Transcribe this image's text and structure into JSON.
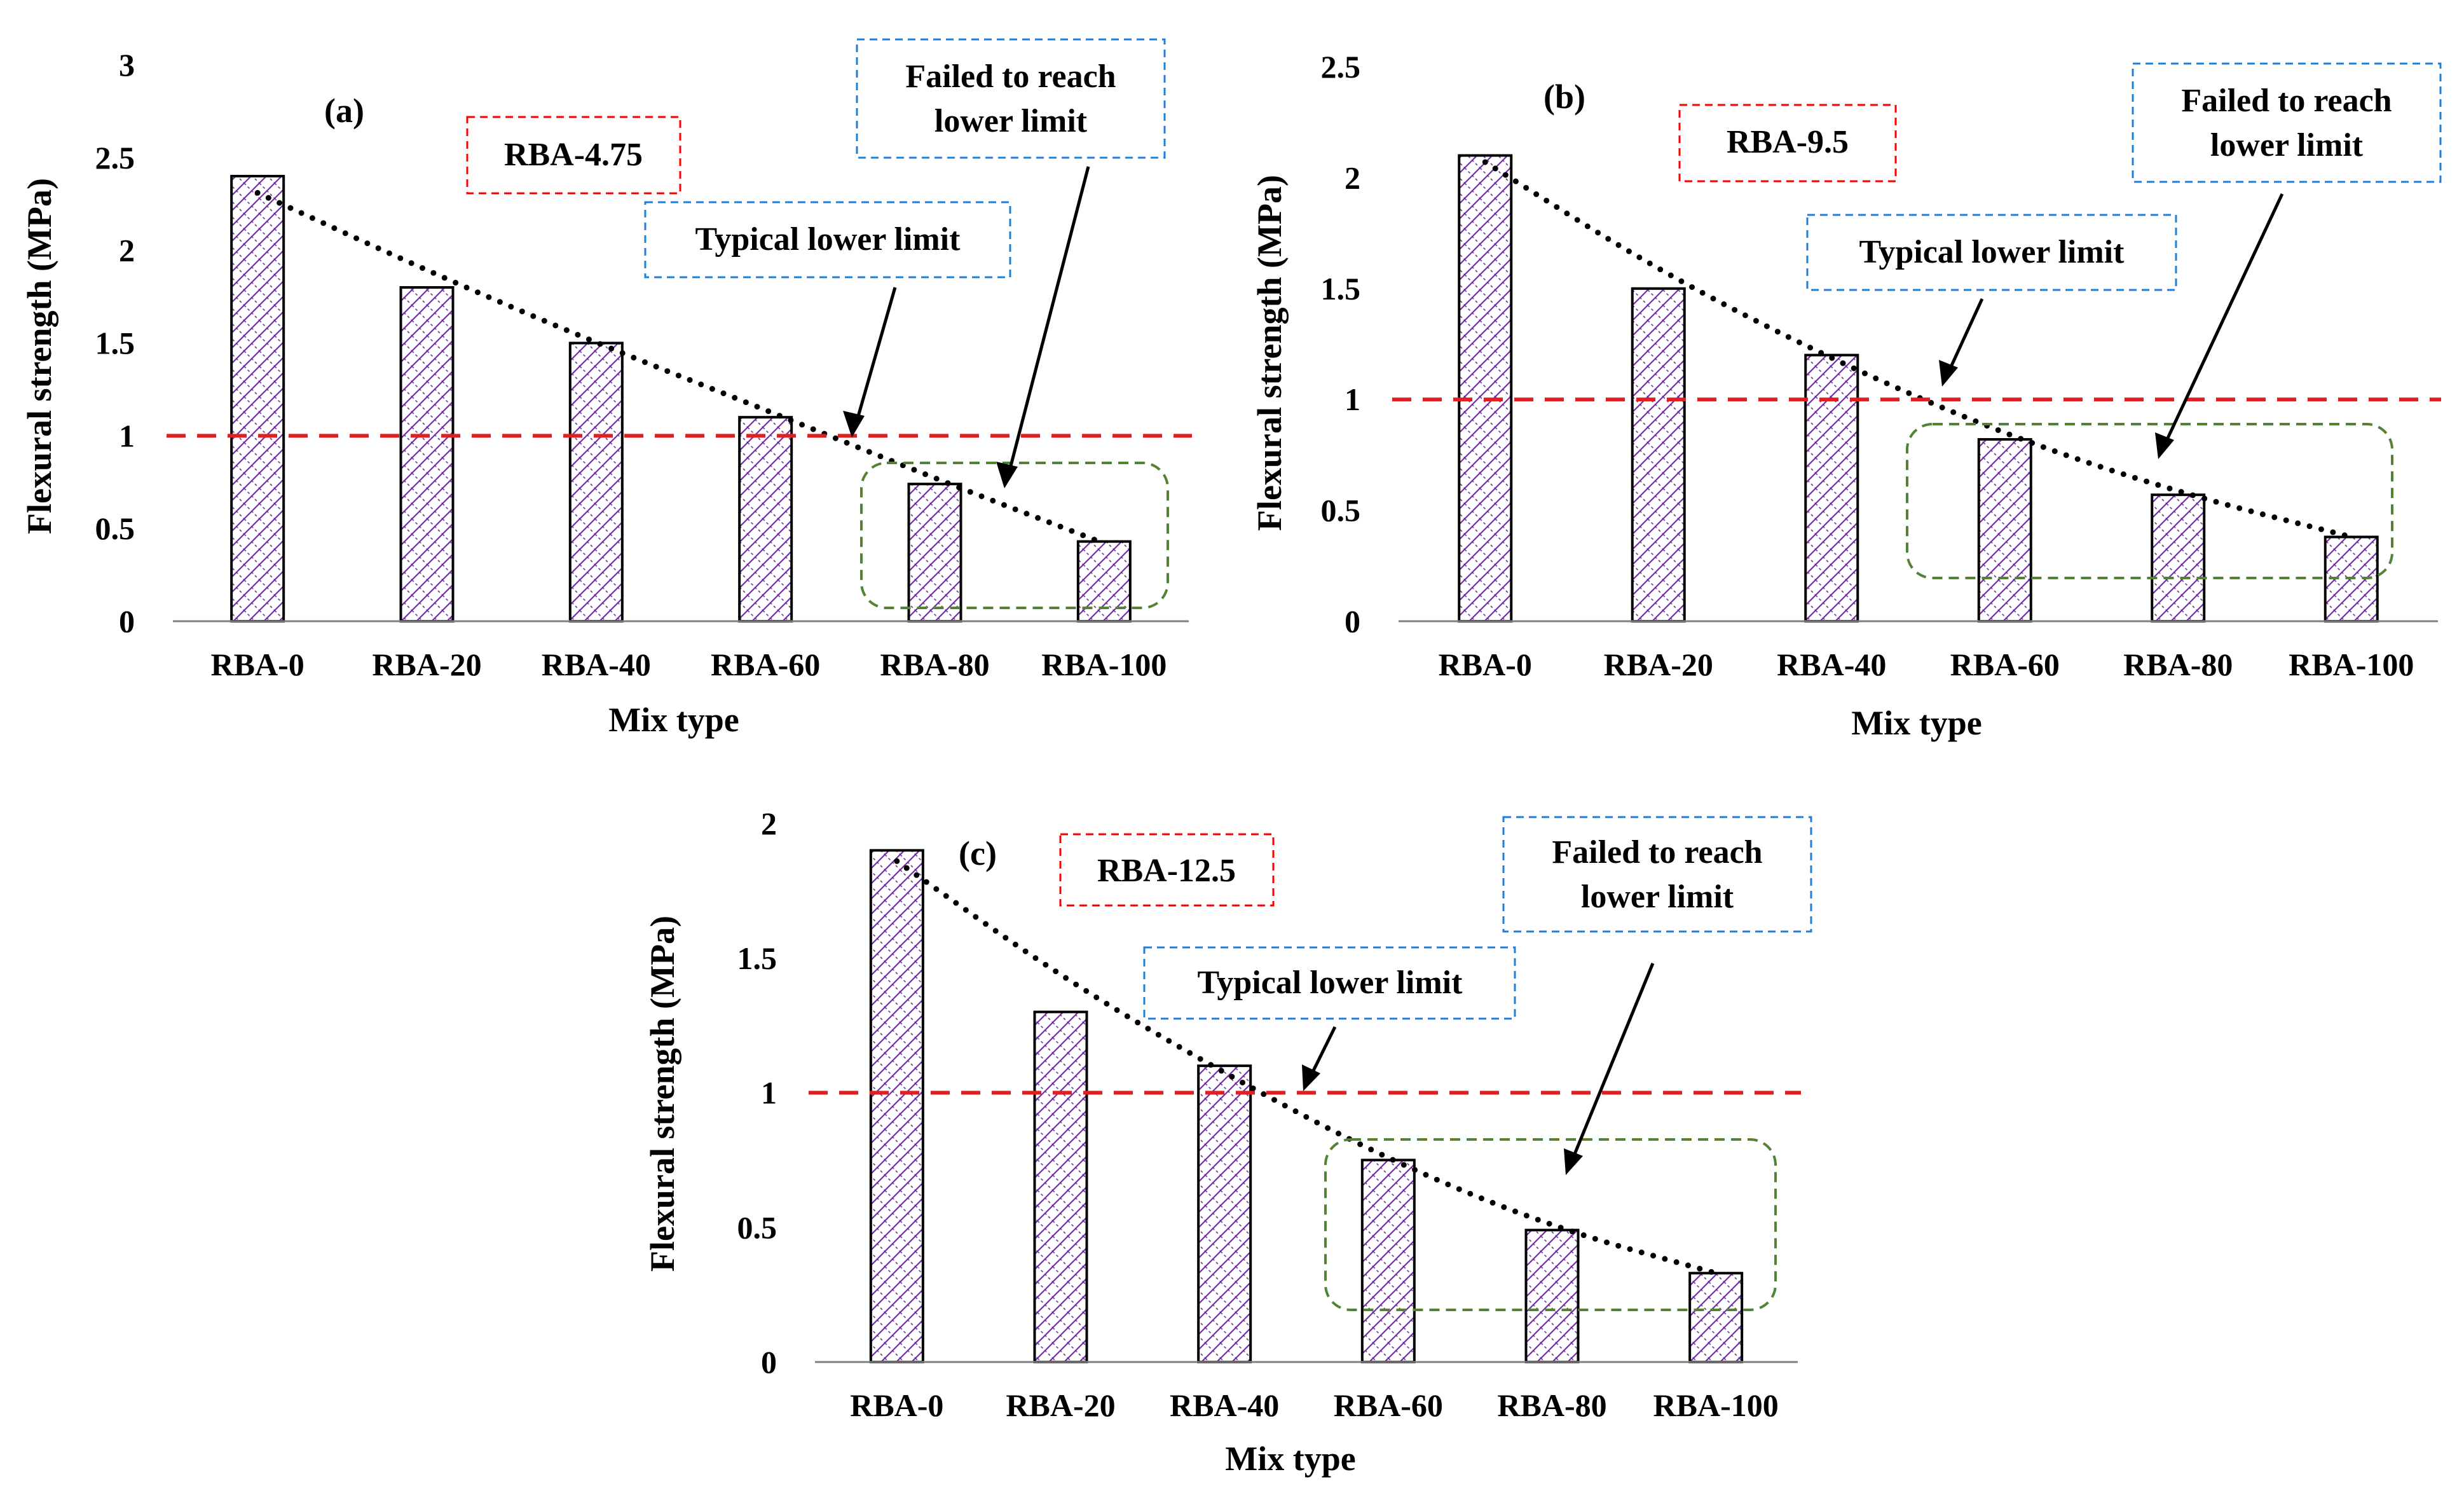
{
  "figure": {
    "reference_line_value": 1
  },
  "chart_data": [
    {
      "type": "bar",
      "panel_label": "(a)",
      "series_label": "RBA-4.75",
      "categories": [
        "RBA-0",
        "RBA-20",
        "RBA-40",
        "RBA-60",
        "RBA-80",
        "RBA-100"
      ],
      "values": [
        2.4,
        1.8,
        1.5,
        1.1,
        0.74,
        0.43
      ],
      "trend": [
        2.31,
        1.89,
        1.5,
        1.14,
        0.77,
        0.42
      ],
      "xlabel": "Mix type",
      "ylabel": "Flexural strength (MPa)",
      "ylim": [
        0,
        3
      ],
      "yticks": [
        0,
        0.5,
        1,
        1.5,
        2,
        2.5,
        3
      ],
      "ytick_labels": [
        "0",
        "0.5",
        "1",
        "1.5",
        "2",
        "2.5",
        "3"
      ],
      "reference_line": 1,
      "annotations": {
        "typical": "Typical lower limit",
        "failed_line1": "Failed to reach",
        "failed_line2": "lower limit"
      },
      "failed_group": [
        "RBA-80",
        "RBA-100"
      ]
    },
    {
      "type": "bar",
      "panel_label": "(b)",
      "series_label": "RBA-9.5",
      "categories": [
        "RBA-0",
        "RBA-20",
        "RBA-40",
        "RBA-60",
        "RBA-80",
        "RBA-100"
      ],
      "values": [
        2.1,
        1.5,
        1.2,
        0.82,
        0.57,
        0.38
      ],
      "trend": [
        2.07,
        1.58,
        1.18,
        0.84,
        0.58,
        0.38
      ],
      "xlabel": "Mix type",
      "ylabel": "Flexural strength (MPa)",
      "ylim": [
        0,
        2.5
      ],
      "yticks": [
        0,
        0.5,
        1,
        1.5,
        2,
        2.5
      ],
      "ytick_labels": [
        "0",
        "0.5",
        "1",
        "1.5",
        "2",
        "2.5"
      ],
      "reference_line": 1,
      "annotations": {
        "typical": "Typical lower limit",
        "failed_line1": "Failed to reach",
        "failed_line2": "lower limit"
      },
      "failed_group": [
        "RBA-60",
        "RBA-80",
        "RBA-100"
      ]
    },
    {
      "type": "bar",
      "panel_label": "(c)",
      "series_label": "RBA-12.5",
      "categories": [
        "RBA-0",
        "RBA-20",
        "RBA-40",
        "RBA-60",
        "RBA-80",
        "RBA-100"
      ],
      "values": [
        1.9,
        1.3,
        1.1,
        0.75,
        0.49,
        0.33
      ],
      "trend": [
        1.86,
        1.43,
        1.07,
        0.75,
        0.5,
        0.33
      ],
      "xlabel": "Mix type",
      "ylabel": "Flexural strength (MPa)",
      "ylim": [
        0,
        2
      ],
      "yticks": [
        0,
        0.5,
        1,
        1.5,
        2
      ],
      "ytick_labels": [
        "0",
        "0.5",
        "1",
        "1.5",
        "2"
      ],
      "reference_line": 1,
      "annotations": {
        "typical": "Typical lower limit",
        "failed_line1": "Failed to reach",
        "failed_line2": "lower limit"
      },
      "failed_group": [
        "RBA-60",
        "RBA-80",
        "RBA-100"
      ]
    }
  ],
  "colors": {
    "bar_outline": "#000000",
    "bar_hatch": "#7030a0",
    "reference_line": "#e02020",
    "series_box": "#ff0000",
    "annotation_box": "#1f7fd6",
    "failed_box": "#548235",
    "trend": "#000000"
  }
}
